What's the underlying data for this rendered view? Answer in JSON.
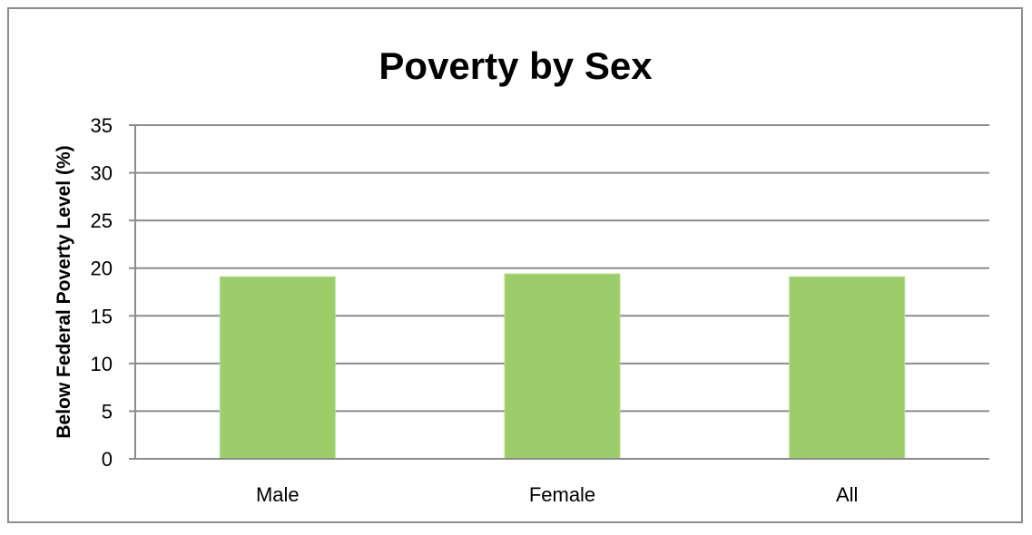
{
  "chart_data": {
    "type": "bar",
    "title": "Poverty by Sex",
    "xlabel": "",
    "ylabel": "Below Federal Poverty Level (%)",
    "categories": [
      "Male",
      "Female",
      "All"
    ],
    "values": [
      19.1,
      19.4,
      19.1
    ],
    "ylim": [
      0,
      35
    ],
    "yticks": [
      0,
      5,
      10,
      15,
      20,
      25,
      30,
      35
    ],
    "grid": true,
    "bar_color": "#9dcd6a",
    "legend": "none"
  }
}
